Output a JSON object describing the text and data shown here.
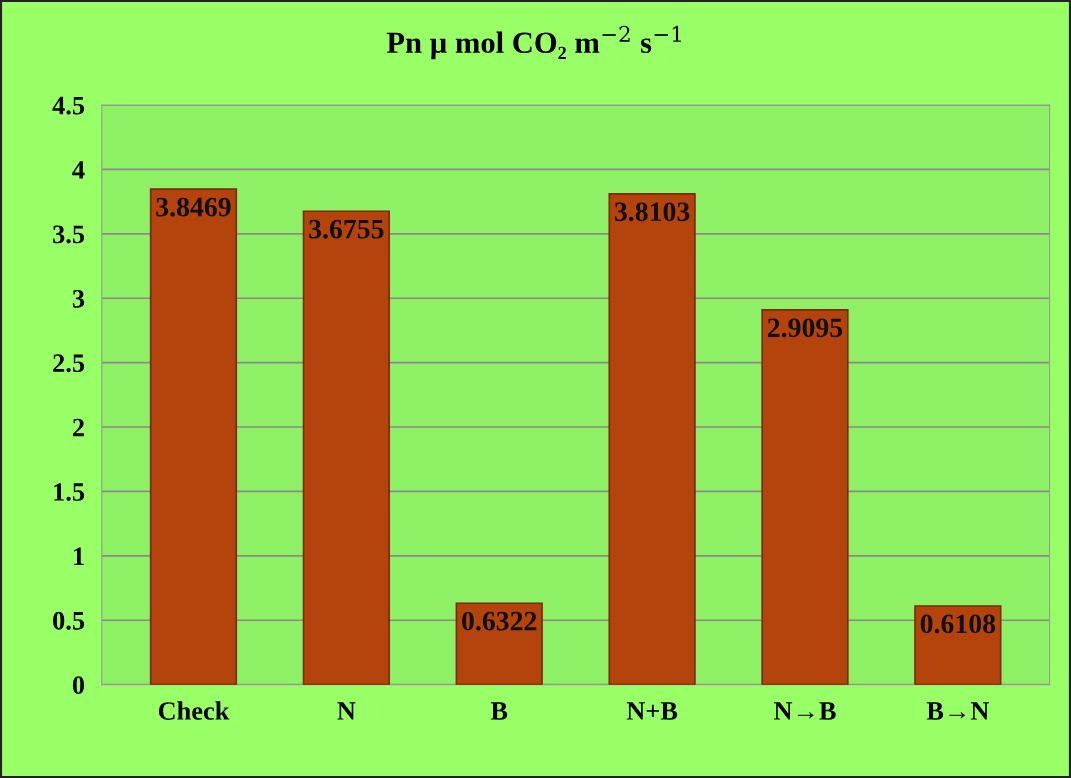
{
  "chart_data": {
    "type": "bar",
    "title": "Pn µ mol CO₂ m$^{−2}$ s$^{−1}$",
    "categories": [
      "Check",
      "N",
      "B",
      "N+B",
      "N→B",
      "B→N"
    ],
    "values": [
      3.8469,
      3.6755,
      0.6322,
      3.8103,
      2.9095,
      0.6108
    ],
    "color": "#b4440c",
    "ylim": [
      0,
      4.5
    ],
    "yticks": [
      0,
      0.5,
      1,
      1.5,
      2,
      2.5,
      3,
      3.5,
      4,
      4.5
    ],
    "grid": "y",
    "data_labels": true,
    "legend": false
  }
}
